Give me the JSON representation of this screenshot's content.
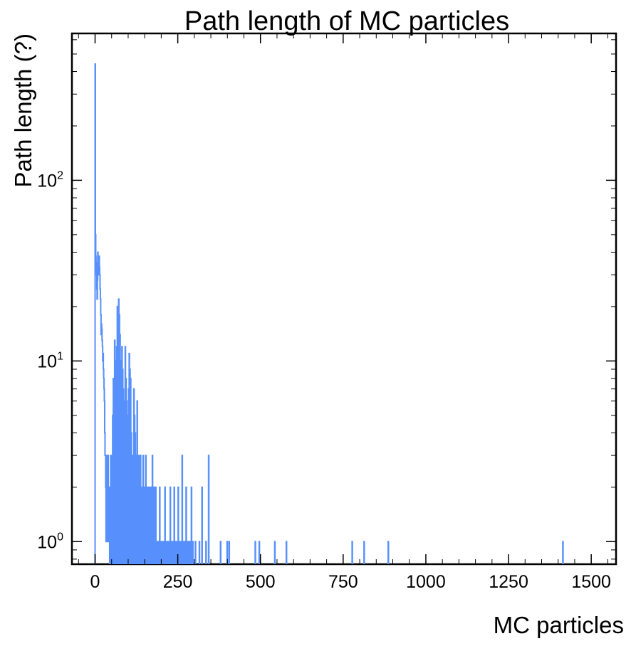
{
  "chart_data": {
    "type": "histogram",
    "title": "Path length of MC particles",
    "xlabel": "MC particles",
    "ylabel": "Path length (?)",
    "xlim": [
      -70,
      1575
    ],
    "ylim": [
      0.75,
      650
    ],
    "yscale": "log",
    "grid": false,
    "line_color": "#5790fc",
    "x_ticks": [
      0,
      250,
      500,
      750,
      1000,
      1250,
      1500
    ],
    "x_tick_labels": [
      "0",
      "250",
      "500",
      "750",
      "1000",
      "1250",
      "1500"
    ],
    "y_ticks": [
      1,
      10,
      100
    ],
    "y_tick_labels": [
      {
        "base": "10",
        "exp": "0"
      },
      {
        "base": "10",
        "exp": "1"
      },
      {
        "base": "10",
        "exp": "2"
      }
    ],
    "bins": [
      [
        0,
        440
      ],
      [
        1,
        50
      ],
      [
        2,
        38
      ],
      [
        3,
        35
      ],
      [
        4,
        30
      ],
      [
        5,
        25
      ],
      [
        6,
        22
      ],
      [
        7,
        28
      ],
      [
        8,
        40
      ],
      [
        9,
        32
      ],
      [
        10,
        30
      ],
      [
        11,
        36
      ],
      [
        12,
        38
      ],
      [
        13,
        33
      ],
      [
        14,
        30
      ],
      [
        15,
        25
      ],
      [
        16,
        22
      ],
      [
        17,
        18
      ],
      [
        18,
        14
      ],
      [
        19,
        16
      ],
      [
        20,
        15
      ],
      [
        21,
        13
      ],
      [
        22,
        12
      ],
      [
        23,
        10
      ],
      [
        24,
        11
      ],
      [
        25,
        9
      ],
      [
        26,
        8
      ],
      [
        27,
        7
      ],
      [
        28,
        6
      ],
      [
        29,
        4
      ],
      [
        30,
        3
      ],
      [
        31,
        3
      ],
      [
        32,
        2
      ],
      [
        33,
        1
      ],
      [
        34,
        2
      ],
      [
        35,
        3
      ],
      [
        36,
        2
      ],
      [
        37,
        1
      ],
      [
        38,
        2
      ],
      [
        39,
        3
      ],
      [
        40,
        2
      ],
      [
        41,
        1
      ],
      [
        42,
        2
      ],
      [
        43,
        1
      ],
      [
        45,
        2
      ],
      [
        47,
        3
      ],
      [
        49,
        2
      ],
      [
        51,
        3
      ],
      [
        53,
        5
      ],
      [
        55,
        8
      ],
      [
        57,
        7
      ],
      [
        59,
        13
      ],
      [
        61,
        10
      ],
      [
        63,
        8
      ],
      [
        65,
        12
      ],
      [
        67,
        20
      ],
      [
        69,
        15
      ],
      [
        71,
        22
      ],
      [
        73,
        18
      ],
      [
        75,
        14
      ],
      [
        77,
        10
      ],
      [
        79,
        8
      ],
      [
        81,
        12
      ],
      [
        83,
        9
      ],
      [
        85,
        7
      ],
      [
        87,
        6
      ],
      [
        89,
        5
      ],
      [
        91,
        12
      ],
      [
        93,
        8
      ],
      [
        95,
        6
      ],
      [
        97,
        5
      ],
      [
        99,
        4
      ],
      [
        101,
        7
      ],
      [
        103,
        11
      ],
      [
        105,
        9
      ],
      [
        107,
        8
      ],
      [
        109,
        4
      ],
      [
        111,
        3
      ],
      [
        113,
        2
      ],
      [
        115,
        3
      ],
      [
        117,
        7
      ],
      [
        119,
        5
      ],
      [
        121,
        4
      ],
      [
        123,
        3
      ],
      [
        125,
        3
      ],
      [
        127,
        6
      ],
      [
        129,
        3
      ],
      [
        131,
        2
      ],
      [
        133,
        3
      ],
      [
        135,
        2
      ],
      [
        137,
        3
      ],
      [
        139,
        2
      ],
      [
        141,
        1
      ],
      [
        143,
        2
      ],
      [
        145,
        3
      ],
      [
        147,
        2
      ],
      [
        149,
        1
      ],
      [
        151,
        2
      ],
      [
        153,
        3
      ],
      [
        155,
        2
      ],
      [
        157,
        1
      ],
      [
        159,
        2
      ],
      [
        161,
        1
      ],
      [
        163,
        2
      ],
      [
        165,
        1
      ],
      [
        167,
        2
      ],
      [
        169,
        1
      ],
      [
        171,
        2
      ],
      [
        173,
        3
      ],
      [
        175,
        2
      ],
      [
        177,
        1
      ],
      [
        179,
        2
      ],
      [
        181,
        1
      ],
      [
        183,
        2
      ],
      [
        185,
        1
      ],
      [
        187,
        1
      ],
      [
        191,
        1
      ],
      [
        195,
        2
      ],
      [
        199,
        1
      ],
      [
        203,
        1
      ],
      [
        207,
        1
      ],
      [
        211,
        2
      ],
      [
        215,
        1
      ],
      [
        219,
        1
      ],
      [
        223,
        1
      ],
      [
        227,
        2
      ],
      [
        231,
        1
      ],
      [
        235,
        1
      ],
      [
        239,
        2
      ],
      [
        243,
        1
      ],
      [
        247,
        1
      ],
      [
        251,
        2
      ],
      [
        255,
        1
      ],
      [
        259,
        1
      ],
      [
        263,
        3
      ],
      [
        267,
        1
      ],
      [
        271,
        1
      ],
      [
        275,
        2
      ],
      [
        279,
        1
      ],
      [
        283,
        1
      ],
      [
        287,
        1
      ],
      [
        291,
        2
      ],
      [
        295,
        1
      ],
      [
        303,
        1
      ],
      [
        315,
        1
      ],
      [
        323,
        2
      ],
      [
        335,
        1
      ],
      [
        343,
        3
      ],
      [
        379,
        1
      ],
      [
        399,
        1
      ],
      [
        405,
        1
      ],
      [
        484,
        1
      ],
      [
        496,
        1
      ],
      [
        543,
        1
      ],
      [
        578,
        1
      ],
      [
        777,
        1
      ],
      [
        813,
        1
      ],
      [
        886,
        1
      ],
      [
        1414,
        1
      ]
    ]
  }
}
